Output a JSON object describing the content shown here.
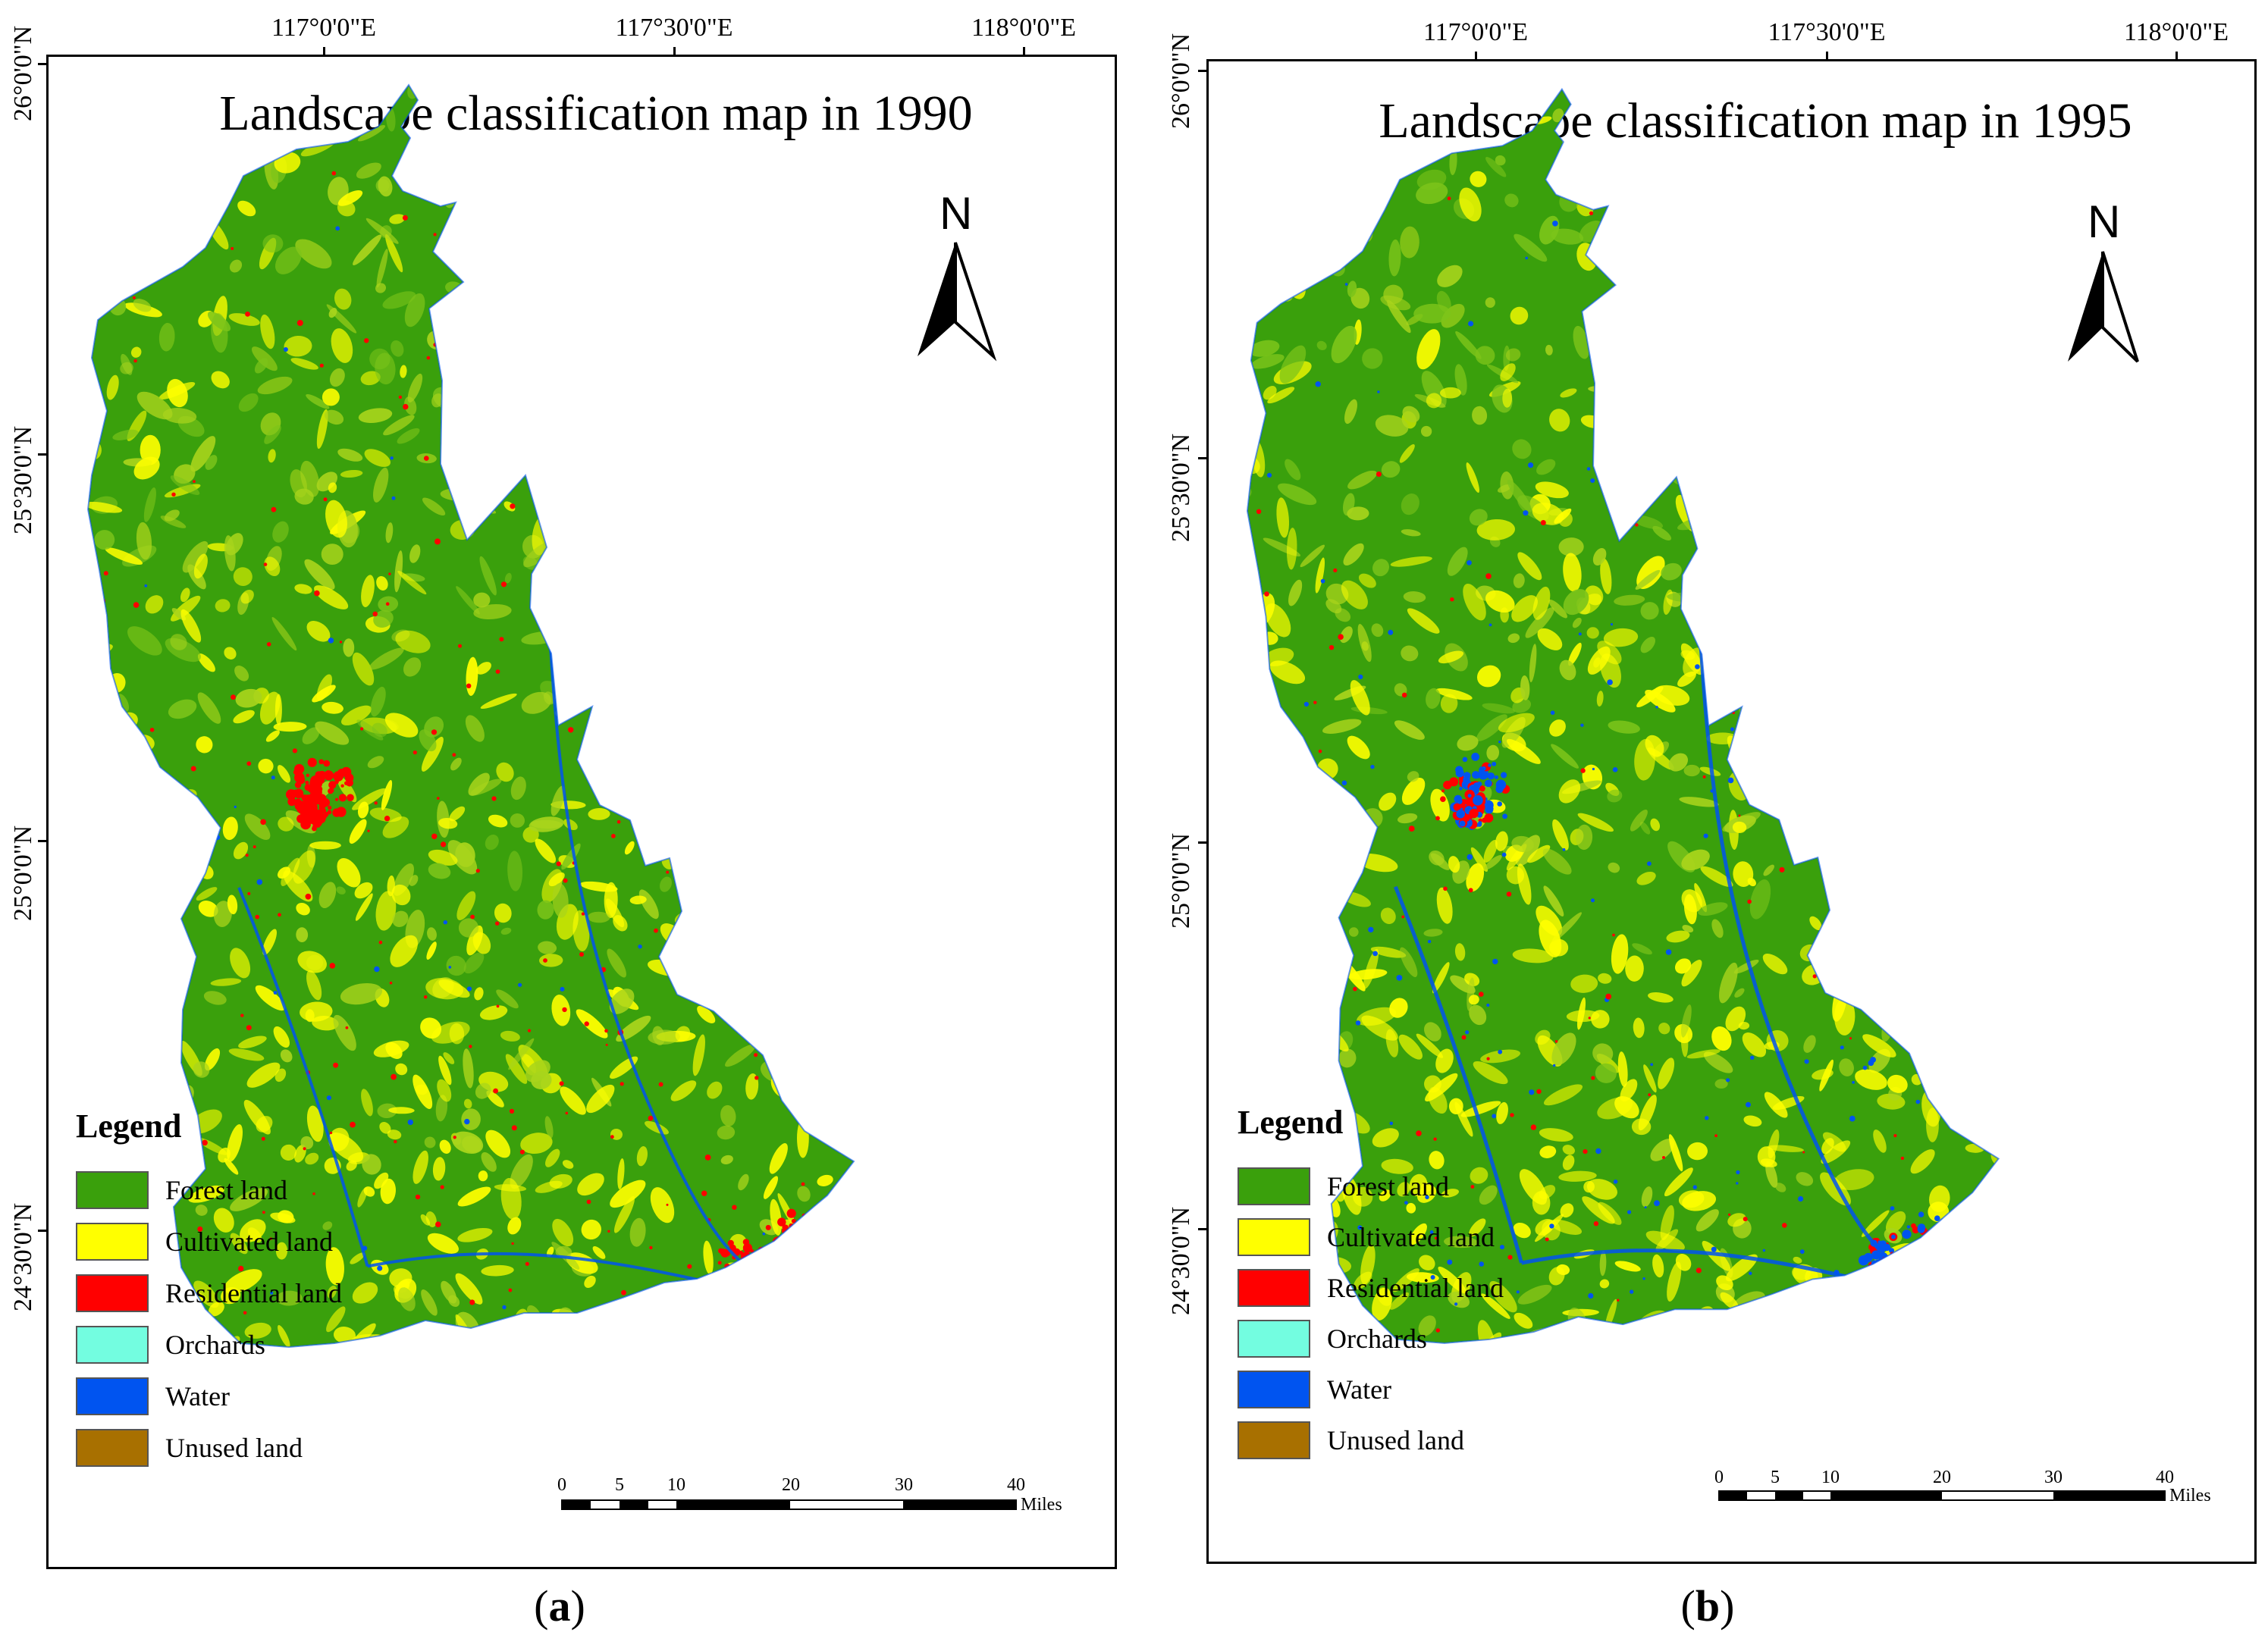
{
  "longitude_labels": [
    "117°0'0\"E",
    "117°30'0\"E",
    "118°0'0\"E"
  ],
  "latitude_labels": [
    "26°0'0\"N",
    "25°30'0\"N",
    "25°0'0\"N",
    "24°30'0\"N"
  ],
  "north_arrow_letter": "N",
  "legend": {
    "title": "Legend",
    "items": [
      {
        "label": "Forest land",
        "color": "#3aa00c"
      },
      {
        "label": "Cultivated land",
        "color": "#ffff00"
      },
      {
        "label": "Residential land",
        "color": "#ff0000"
      },
      {
        "label": "Orchards",
        "color": "#73fde0"
      },
      {
        "label": "Water",
        "color": "#0054f0"
      },
      {
        "label": "Unused land",
        "color": "#a87000"
      }
    ]
  },
  "scale_bar": {
    "ticks": [
      "0",
      "5",
      "10",
      "20",
      "30",
      "40"
    ],
    "unit": "Miles"
  },
  "panels": [
    {
      "title": "Landscape classification map in 1990",
      "caption_letter": "a",
      "year": 1990
    },
    {
      "title": "Landscape classification map in 1995",
      "caption_letter": "b",
      "year": 1995
    }
  ],
  "caption_parens": {
    "open": "(",
    "close": ")"
  },
  "colors": {
    "forest": "#3aa00c",
    "cultivated": "#ffff00",
    "residential": "#ff0000",
    "orchards": "#73fde0",
    "water": "#0054f0",
    "unused": "#a87000",
    "forest_light": "#7cc41a",
    "mixed": "#a8d41c"
  }
}
